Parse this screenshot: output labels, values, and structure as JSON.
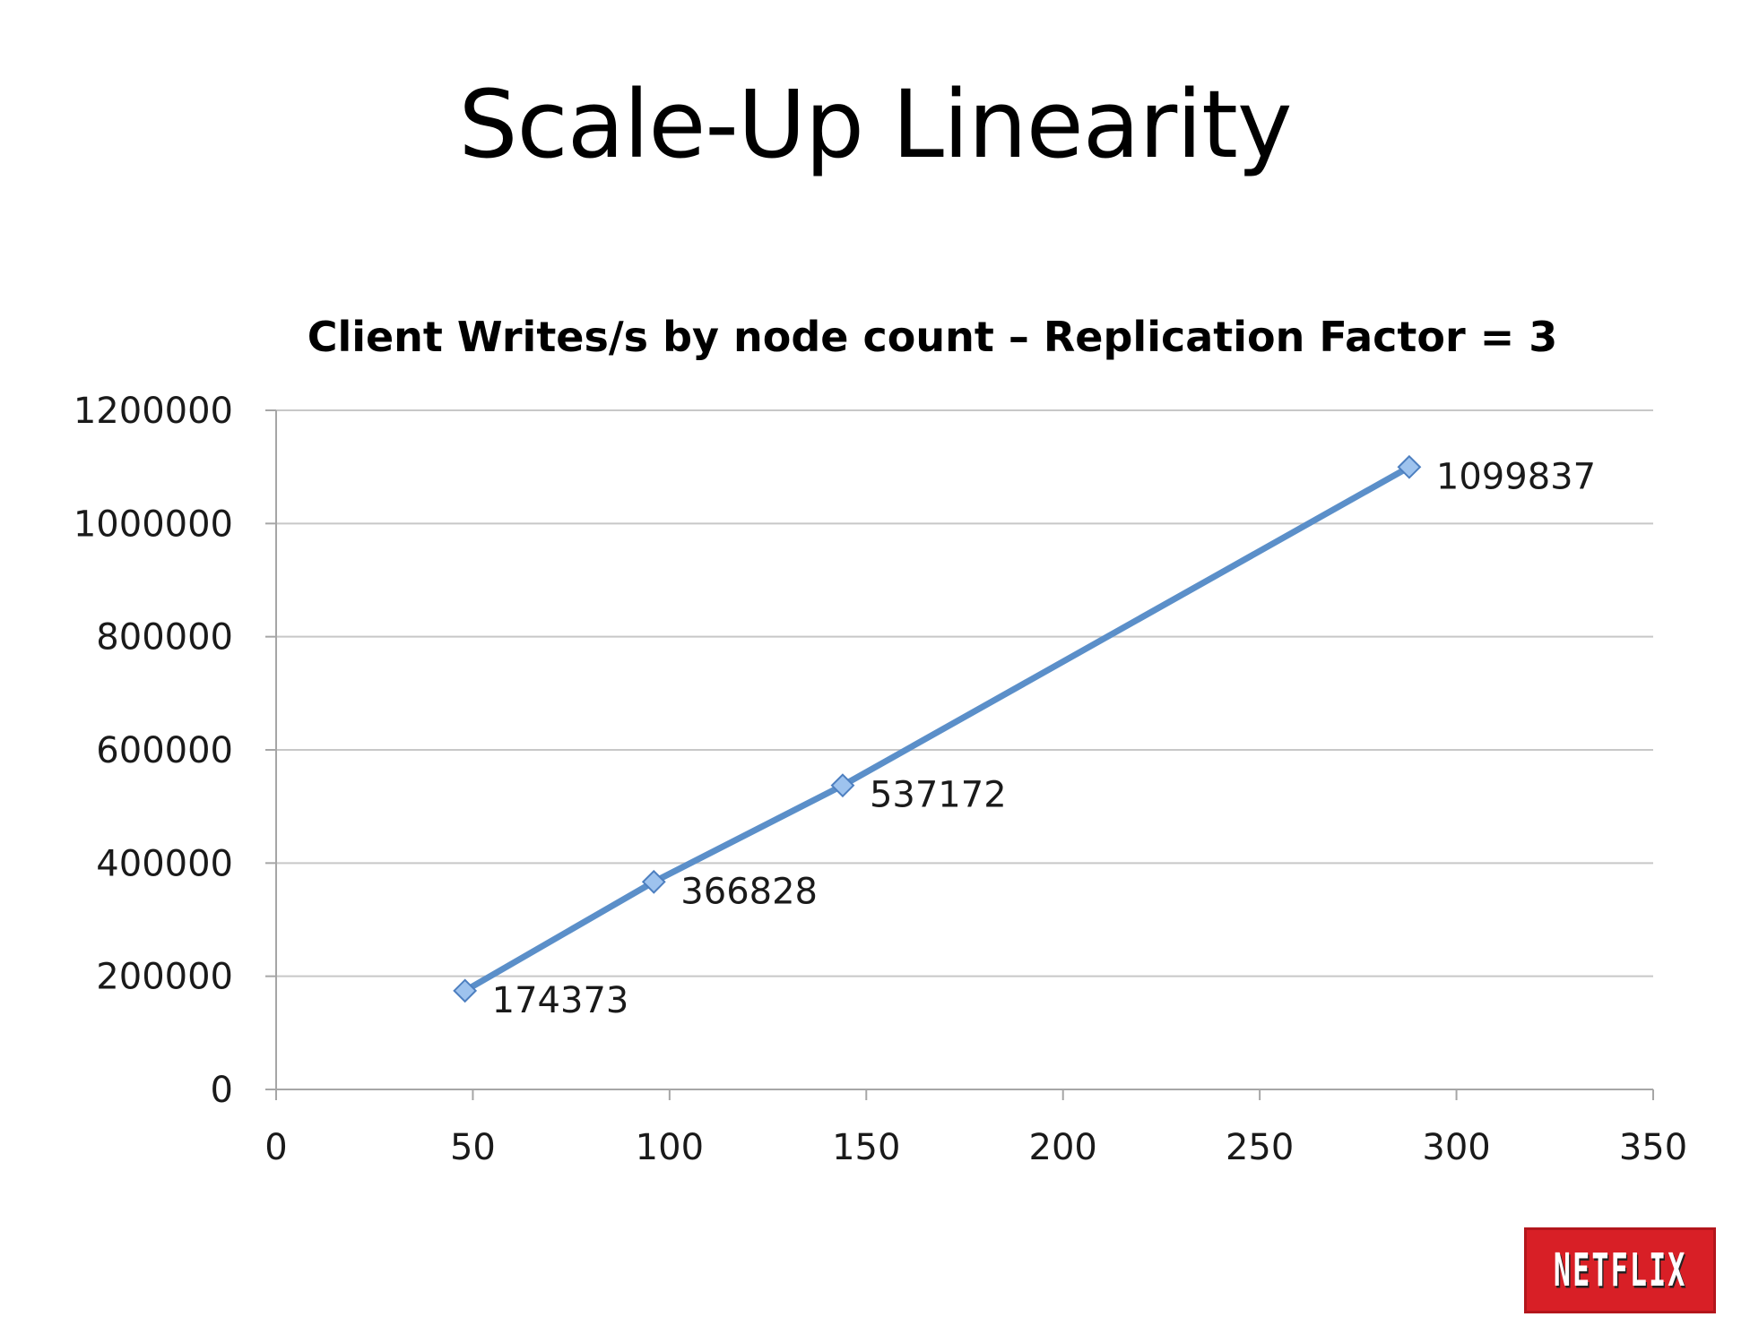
{
  "slide": {
    "title": "Scale-Up Linearity"
  },
  "logo": {
    "text": "NETFLIX",
    "color": "#d81f26"
  },
  "chart_data": {
    "type": "line",
    "title": "Client Writes/s by node count – Replication Factor = 3",
    "xlabel": "",
    "ylabel": "",
    "xlim": [
      0,
      350
    ],
    "ylim": [
      0,
      1200000
    ],
    "x_ticks": [
      "0",
      "50",
      "100",
      "150",
      "200",
      "250",
      "300",
      "350"
    ],
    "y_ticks": [
      "0",
      "200000",
      "400000",
      "600000",
      "800000",
      "1000000",
      "1200000"
    ],
    "grid": true,
    "legend": "none",
    "series": [
      {
        "color": "#5b8fc9",
        "points": [
          {
            "x": 48,
            "y": 174373,
            "label": "174373"
          },
          {
            "x": 96,
            "y": 366828,
            "label": "366828"
          },
          {
            "x": 144,
            "y": 537172,
            "label": "537172"
          },
          {
            "x": 288,
            "y": 1099837,
            "label": "1099837"
          }
        ]
      }
    ]
  }
}
